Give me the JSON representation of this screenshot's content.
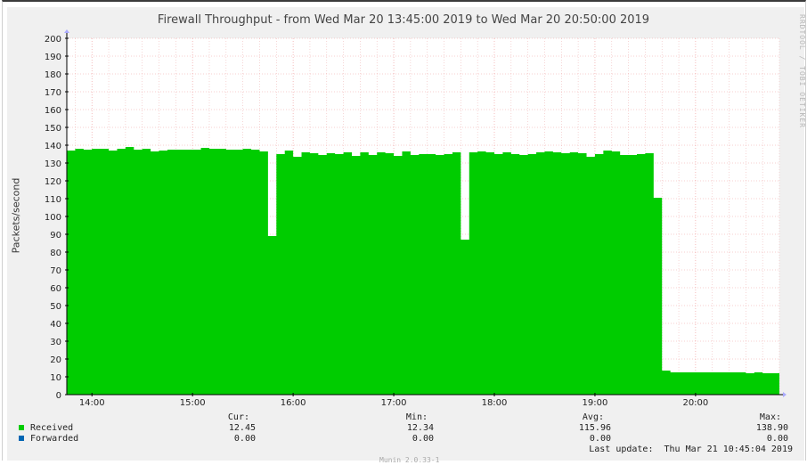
{
  "chart_data": {
    "type": "area",
    "title": "Firewall Throughput - from Wed Mar 20 13:45:00 2019 to Wed Mar 20 20:50:00 2019",
    "ylabel": "Packets/second",
    "xlabel": "",
    "ylim": [
      0,
      200
    ],
    "yticks": [
      "0",
      "10",
      "20",
      "30",
      "40",
      "50",
      "60",
      "70",
      "80",
      "90",
      "100",
      "110",
      "120",
      "130",
      "140",
      "150",
      "160",
      "170",
      "180",
      "190",
      "200"
    ],
    "xtick_labels": [
      "14:00",
      "15:00",
      "16:00",
      "17:00",
      "18:00",
      "19:00",
      "20:00"
    ],
    "xtick_minutes": [
      840,
      900,
      960,
      1020,
      1080,
      1140,
      1200
    ],
    "x_range_minutes": [
      825,
      1250
    ],
    "grid": true,
    "series": [
      {
        "name": "Received",
        "color": "#00cc00",
        "x_minutes": [
          825,
          830,
          835,
          840,
          845,
          850,
          855,
          860,
          865,
          870,
          875,
          880,
          885,
          890,
          895,
          900,
          905,
          910,
          915,
          920,
          925,
          930,
          935,
          940,
          945,
          950,
          955,
          960,
          965,
          970,
          975,
          980,
          985,
          990,
          995,
          1000,
          1005,
          1010,
          1015,
          1020,
          1025,
          1030,
          1035,
          1040,
          1045,
          1050,
          1055,
          1060,
          1065,
          1070,
          1075,
          1080,
          1085,
          1090,
          1095,
          1100,
          1105,
          1110,
          1115,
          1120,
          1125,
          1130,
          1135,
          1140,
          1145,
          1150,
          1155,
          1160,
          1165,
          1170,
          1175,
          1180,
          1185,
          1190,
          1195,
          1200,
          1205,
          1210,
          1215,
          1220,
          1225,
          1230,
          1235,
          1240,
          1245
        ],
        "values": [
          137,
          138,
          137.5,
          138,
          138,
          137,
          138,
          139,
          137.5,
          138,
          136.5,
          137,
          137.5,
          137.5,
          137.5,
          137.5,
          138.5,
          138,
          138,
          137.5,
          137.5,
          138,
          137.5,
          136.5,
          89,
          135,
          137,
          133.5,
          136,
          135.5,
          134.5,
          135.5,
          135,
          136,
          134,
          136,
          134.5,
          136,
          135.5,
          134,
          136.5,
          134.5,
          135,
          135,
          134.5,
          135,
          136,
          87,
          136,
          136.5,
          136,
          135,
          136,
          135,
          134.5,
          135,
          136,
          136.5,
          136,
          135.5,
          136,
          135.5,
          133.5,
          135,
          137,
          136.5,
          134.5,
          134.5,
          135,
          135.5,
          110.5,
          13.5,
          12.5,
          12.5,
          12.5,
          12.5,
          12.5,
          12.5,
          12.5,
          12.5,
          12.5,
          12,
          12.5,
          12,
          12
        ]
      },
      {
        "name": "Forwarded",
        "color": "#0066b3",
        "values_all_zero": true
      }
    ]
  },
  "legend": {
    "received": "Received",
    "forwarded": "Forwarded",
    "received_color": "#00cc00",
    "forwarded_color": "#0066b3"
  },
  "stats": {
    "headers": {
      "cur": "Cur:",
      "min": "Min:",
      "avg": "Avg:",
      "max": "Max:"
    },
    "received": {
      "cur": "12.45",
      "min": "12.34",
      "avg": "115.96",
      "max": "138.90"
    },
    "forwarded": {
      "cur": "0.00",
      "min": "0.00",
      "avg": "0.00",
      "max": "0.00"
    }
  },
  "last_update": "Last update:  Thu Mar 21 10:45:04 2019",
  "watermark": "RRDTOOL / TOBI OETIKER",
  "footer": "Munin 2.0.33-1"
}
